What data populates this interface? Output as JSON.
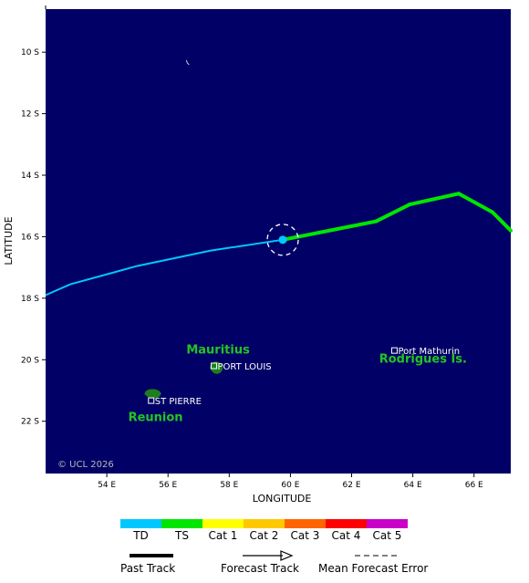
{
  "map": {
    "lon_range": [
      52,
      67.2
    ],
    "lat_range": [
      -23.7,
      -8.6
    ],
    "lon_ticks": [
      54,
      56,
      58,
      60,
      62,
      64,
      66
    ],
    "lat_ticks": [
      -10,
      -12,
      -14,
      -16,
      -18,
      -20,
      -22
    ],
    "lon_tick_labels": [
      "54 E",
      "56 E",
      "58 E",
      "60 E",
      "62 E",
      "64 E",
      "66 E"
    ],
    "lat_tick_labels": [
      "10 S",
      "12 S",
      "14 S",
      "16 S",
      "18 S",
      "20 S",
      "22 S"
    ],
    "x_axis_title": "LONGITUDE",
    "y_axis_title": "LATITUDE",
    "copyright": "© UCL 2026",
    "ocean_color": "#000066",
    "land_color": "#1e7d1e"
  },
  "places": [
    {
      "name": "PORT LOUIS",
      "lon": 57.5,
      "lat": -20.2
    },
    {
      "name": "ST PIERRE",
      "lon": 55.45,
      "lat": -21.33
    },
    {
      "name": "Port Mathurin",
      "lon": 63.4,
      "lat": -19.7
    }
  ],
  "islands": [
    {
      "name": "Mauritius",
      "label_lon": 56.6,
      "label_lat": -19.8
    },
    {
      "name": "Reunion",
      "label_lon": 54.7,
      "label_lat": -22.0
    },
    {
      "name": "Rodrigues Is.",
      "label_lon": 62.9,
      "label_lat": -20.1
    }
  ],
  "storm": {
    "current_position": {
      "lon": 59.75,
      "lat": -16.1
    },
    "past_track": [
      {
        "lon": 52.0,
        "lat": -17.9
      },
      {
        "lon": 52.8,
        "lat": -17.55
      },
      {
        "lon": 55.0,
        "lat": -16.95
      },
      {
        "lon": 57.4,
        "lat": -16.45
      },
      {
        "lon": 59.75,
        "lat": -16.1
      }
    ],
    "forecast_track": [
      {
        "lon": 59.75,
        "lat": -16.1,
        "category": "TD"
      },
      {
        "lon": 62.8,
        "lat": -15.5,
        "category": "TS"
      },
      {
        "lon": 63.9,
        "lat": -14.95,
        "category": "TS"
      },
      {
        "lon": 65.5,
        "lat": -14.6,
        "category": "TS"
      },
      {
        "lon": 66.6,
        "lat": -15.2,
        "category": "TS"
      },
      {
        "lon": 67.2,
        "lat": -15.8,
        "category": "TS"
      }
    ]
  },
  "legend": {
    "categories": [
      {
        "label": "TD",
        "color": "#00c8ff"
      },
      {
        "label": "TS",
        "color": "#00e600"
      },
      {
        "label": "Cat 1",
        "color": "#ffff00"
      },
      {
        "label": "Cat 2",
        "color": "#ffc800"
      },
      {
        "label": "Cat 3",
        "color": "#ff6400"
      },
      {
        "label": "Cat 4",
        "color": "#ff0000"
      },
      {
        "label": "Cat 5",
        "color": "#c800c8"
      }
    ],
    "past_track_label": "Past Track",
    "forecast_track_label": "Forecast Track",
    "mean_error_label": "Mean Forecast Error"
  }
}
